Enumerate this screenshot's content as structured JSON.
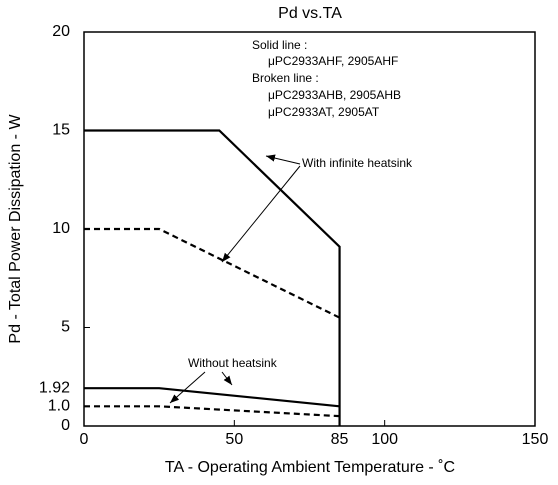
{
  "chart_data": {
    "type": "line",
    "title": "Pd vs.TA",
    "x_label": "TA - Operating Ambient Temperature - ˚C",
    "y_label": "Pd - Total Power Dissipation - W",
    "xlim": [
      0,
      150
    ],
    "xticks": [
      0,
      50,
      85,
      100,
      150
    ],
    "ylim": [
      0,
      20
    ],
    "yticks": [
      0,
      {
        "value": 1,
        "label": "1.0"
      },
      1.92,
      5,
      10,
      15,
      20
    ],
    "grid": false,
    "series": [
      {
        "x": [
          0,
          45,
          85,
          85
        ],
        "values": [
          15,
          15,
          9.1,
          0
        ],
        "color": "#000000",
        "style": "solid"
      },
      {
        "x": [
          0,
          25,
          85
        ],
        "values": [
          10,
          10,
          5.5
        ],
        "color": "#000000",
        "style": "dashed"
      },
      {
        "x": [
          0,
          25,
          85
        ],
        "values": [
          1.92,
          1.92,
          1.0
        ],
        "color": "#000000",
        "style": "solid"
      },
      {
        "x": [
          0,
          25,
          85
        ],
        "values": [
          1.0,
          1.0,
          0.5
        ],
        "color": "#000000",
        "style": "dashed"
      }
    ],
    "annotations": [
      "Solid line :",
      "μPC2933AHF, 2905AHF",
      "Broken line :",
      "μPC2933AHB, 2905AHB",
      "μPC2933AT, 2905AT",
      "With infinite heatsink",
      "Without heatsink"
    ]
  }
}
